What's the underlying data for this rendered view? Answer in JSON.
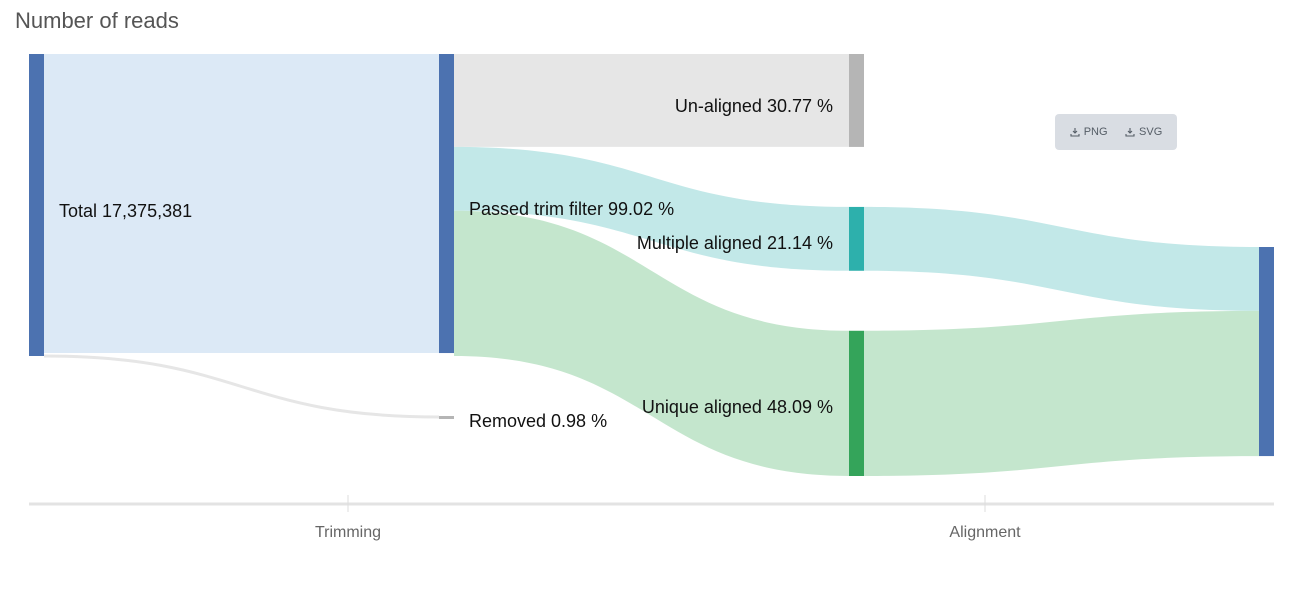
{
  "title": "Number of reads",
  "export": {
    "png_label": "PNG",
    "svg_label": "SVG",
    "icon": "download-icon"
  },
  "chart_data": {
    "type": "sankey",
    "title": "Number of reads",
    "stages": [
      "Trimming",
      "Alignment"
    ],
    "total_reads": 17375381,
    "nodes": [
      {
        "id": "total",
        "label": "Total 17,375,381",
        "column": 0,
        "color": "#4c72b0"
      },
      {
        "id": "passed",
        "label": "Passed trim filter 99.02 %",
        "column": 1,
        "color": "#4c72b0"
      },
      {
        "id": "removed",
        "label": "Removed 0.98 %",
        "column": 1,
        "color": "#b5b5b5"
      },
      {
        "id": "unaligned",
        "label": "Un-aligned 30.77 %",
        "column": 2,
        "color": "#b5b5b5"
      },
      {
        "id": "multiple",
        "label": "Multiple aligned 21.14 %",
        "column": 2,
        "color": "#2db0ac"
      },
      {
        "id": "unique",
        "label": "Unique aligned 48.09 %",
        "column": 2,
        "color": "#34a45a"
      },
      {
        "id": "aligned",
        "label": "",
        "column": 3,
        "color": "#4c72b0"
      }
    ],
    "links": [
      {
        "source": "total",
        "target": "passed",
        "percent": 99.02,
        "color": "#dce9f6"
      },
      {
        "source": "total",
        "target": "removed",
        "percent": 0.98,
        "color": "#e6e6e6"
      },
      {
        "source": "passed",
        "target": "unaligned",
        "percent": 30.77,
        "color": "#e6e6e6"
      },
      {
        "source": "passed",
        "target": "multiple",
        "percent": 21.14,
        "color": "#c2e8e8"
      },
      {
        "source": "passed",
        "target": "unique",
        "percent": 48.09,
        "color": "#c4e6cd"
      },
      {
        "source": "multiple",
        "target": "aligned",
        "percent": 21.14,
        "color": "#c2e8e8"
      },
      {
        "source": "unique",
        "target": "aligned",
        "percent": 48.09,
        "color": "#c4e6cd"
      }
    ]
  }
}
